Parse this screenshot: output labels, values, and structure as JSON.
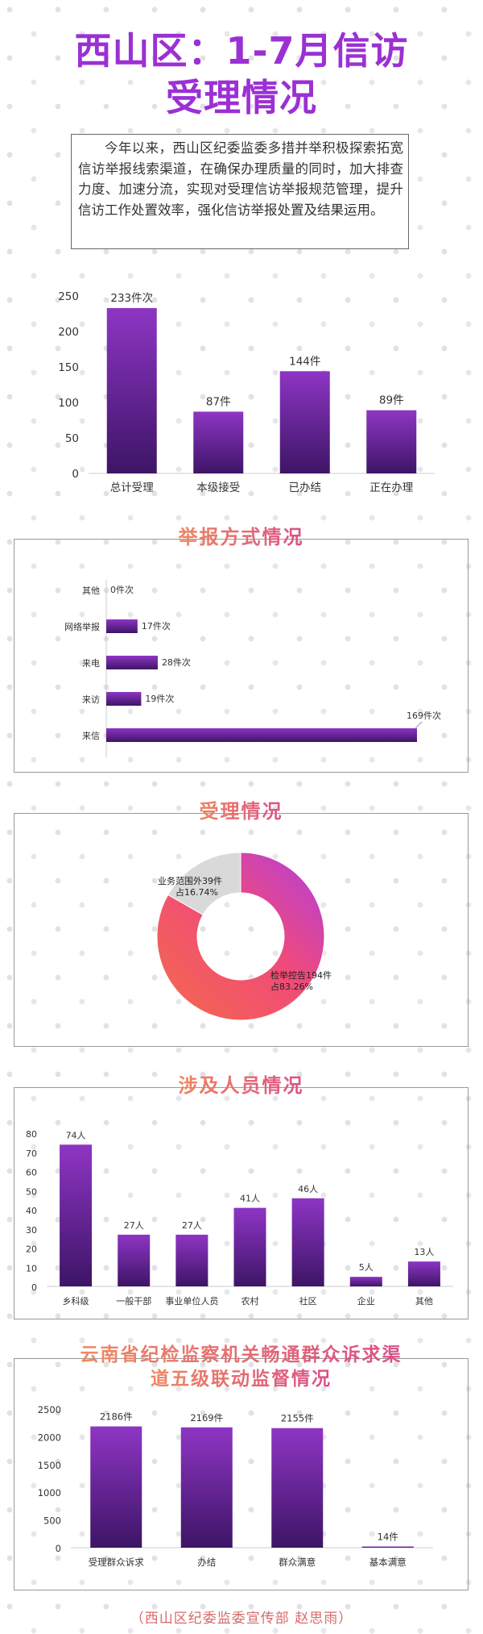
{
  "title_line1": "西山区：1-7月信访",
  "title_line2": "受理情况",
  "intro": "今年以来，西山区纪委监委多措并举积极探索拓宽信访举报线索渠道，在确保办理质量的同时，加大排查力度、加速分流，实现对受理信访举报规范管理，提升信访工作处置效率，强化信访举报处置及结果运用。",
  "panels": {
    "methods_title": "举报方式情况",
    "acceptance_title": "受理情况",
    "persons_title": "涉及人员情况",
    "linkage_title_line1": "云南省纪检监察机关畅通群众诉求渠",
    "linkage_title_line2": "道五级联动监督情况"
  },
  "credit": "（西山区纪委监委宣传部  赵思雨）",
  "colors": {
    "title": "#9b30d4",
    "bar_top": "#8e35c4",
    "bar_bottom": "#3d1566",
    "donut_pink": "#f04a7a",
    "donut_purple": "#b13ee0",
    "donut_orange": "#f46a4a",
    "donut_gray": "#d9d9d9"
  },
  "chart_data": [
    {
      "id": "summary",
      "type": "bar",
      "categories": [
        "总计受理",
        "本级接受",
        "已办结",
        "正在办理"
      ],
      "values": [
        233,
        87,
        144,
        89
      ],
      "labels": [
        "233件次",
        "87件",
        "144件",
        "89件"
      ],
      "ylim": [
        0,
        250
      ],
      "yticks": [
        0,
        50,
        100,
        150,
        200,
        250
      ]
    },
    {
      "id": "methods",
      "type": "bar",
      "orientation": "horizontal",
      "categories": [
        "其他",
        "网络举报",
        "来电",
        "来访",
        "来信"
      ],
      "values": [
        0,
        17,
        28,
        19,
        169
      ],
      "labels": [
        "0件次",
        "17件次",
        "28件次",
        "19件次",
        "169件次"
      ]
    },
    {
      "id": "acceptance",
      "type": "pie",
      "donut": true,
      "slices": [
        {
          "name": "检举控告",
          "value": 194,
          "label_line1": "检举控告194件",
          "label_line2": "占83.26%"
        },
        {
          "name": "业务范围外",
          "value": 39,
          "label_line1": "业务范围外39件",
          "label_line2": "占16.74%"
        }
      ]
    },
    {
      "id": "persons",
      "type": "bar",
      "categories": [
        "乡科级",
        "一般干部",
        "事业单位人员",
        "农村",
        "社区",
        "企业",
        "其他"
      ],
      "values": [
        74,
        27,
        27,
        41,
        46,
        5,
        13
      ],
      "labels": [
        "74人",
        "27人",
        "27人",
        "41人",
        "46人",
        "5人",
        "13人"
      ],
      "ylim": [
        0,
        80
      ],
      "yticks": [
        0,
        10,
        20,
        30,
        40,
        50,
        60,
        70,
        80
      ]
    },
    {
      "id": "linkage",
      "type": "bar",
      "categories": [
        "受理群众诉求",
        "办结",
        "群众满意",
        "基本满意"
      ],
      "values": [
        2186,
        2169,
        2155,
        14
      ],
      "labels": [
        "2186件",
        "2169件",
        "2155件",
        "14件"
      ],
      "ylim": [
        0,
        2500
      ],
      "yticks": [
        0,
        500,
        1000,
        1500,
        2000,
        2500
      ]
    }
  ]
}
